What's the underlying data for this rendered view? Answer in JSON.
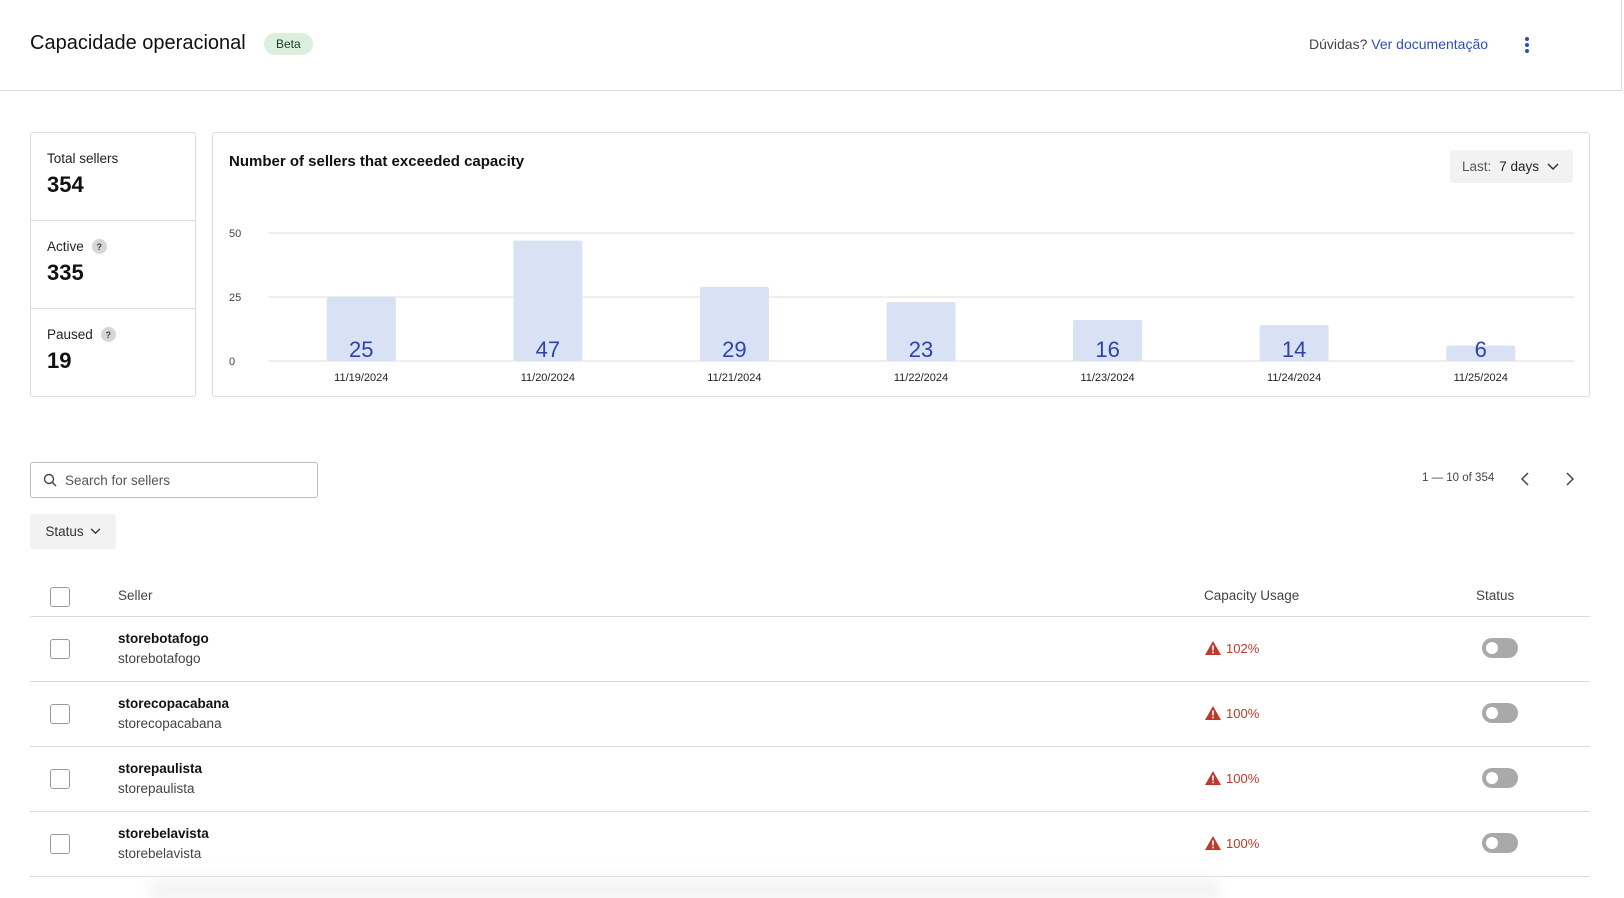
{
  "header": {
    "title": "Capacidade operacional",
    "badge": "Beta",
    "help_prefix": "Dúvidas?",
    "help_link": "Ver documentação"
  },
  "stats": [
    {
      "label": "Total sellers",
      "value": "354"
    },
    {
      "label": "Active",
      "value": "335",
      "help": "?"
    },
    {
      "label": "Paused",
      "value": "19",
      "help": "?"
    }
  ],
  "chart_card": {
    "range_prefix": "Last:",
    "range_value": "7 days"
  },
  "chart_data": {
    "type": "bar",
    "title": "Number of sellers that exceeded capacity",
    "categories": [
      "11/19/2024",
      "11/20/2024",
      "11/21/2024",
      "11/22/2024",
      "11/23/2024",
      "11/24/2024",
      "11/25/2024"
    ],
    "values": [
      25,
      47,
      29,
      23,
      16,
      14,
      6
    ],
    "yticks": [
      0,
      25,
      50
    ],
    "ylim": [
      0,
      50
    ],
    "grid": true,
    "bar_color": "#d9e1f4",
    "label_color": "#2d44a8"
  },
  "search": {
    "placeholder": "Search for sellers"
  },
  "pagination": {
    "text": "1 — 10 of 354"
  },
  "filters": {
    "status": "Status"
  },
  "table": {
    "columns": {
      "seller": "Seller",
      "capacity": "Capacity Usage",
      "status": "Status"
    },
    "rows": [
      {
        "name": "storebotafogo",
        "id": "storebotafogo",
        "usage": "102%",
        "active": false
      },
      {
        "name": "storecopacabana",
        "id": "storecopacabana",
        "usage": "100%",
        "active": false
      },
      {
        "name": "storepaulista",
        "id": "storepaulista",
        "usage": "100%",
        "active": false
      },
      {
        "name": "storebelavista",
        "id": "storebelavista",
        "usage": "100%",
        "active": false
      }
    ]
  },
  "colors": {
    "link": "#2d4fb8",
    "warning": "#c0392b",
    "beta_bg": "#dcefdf"
  }
}
